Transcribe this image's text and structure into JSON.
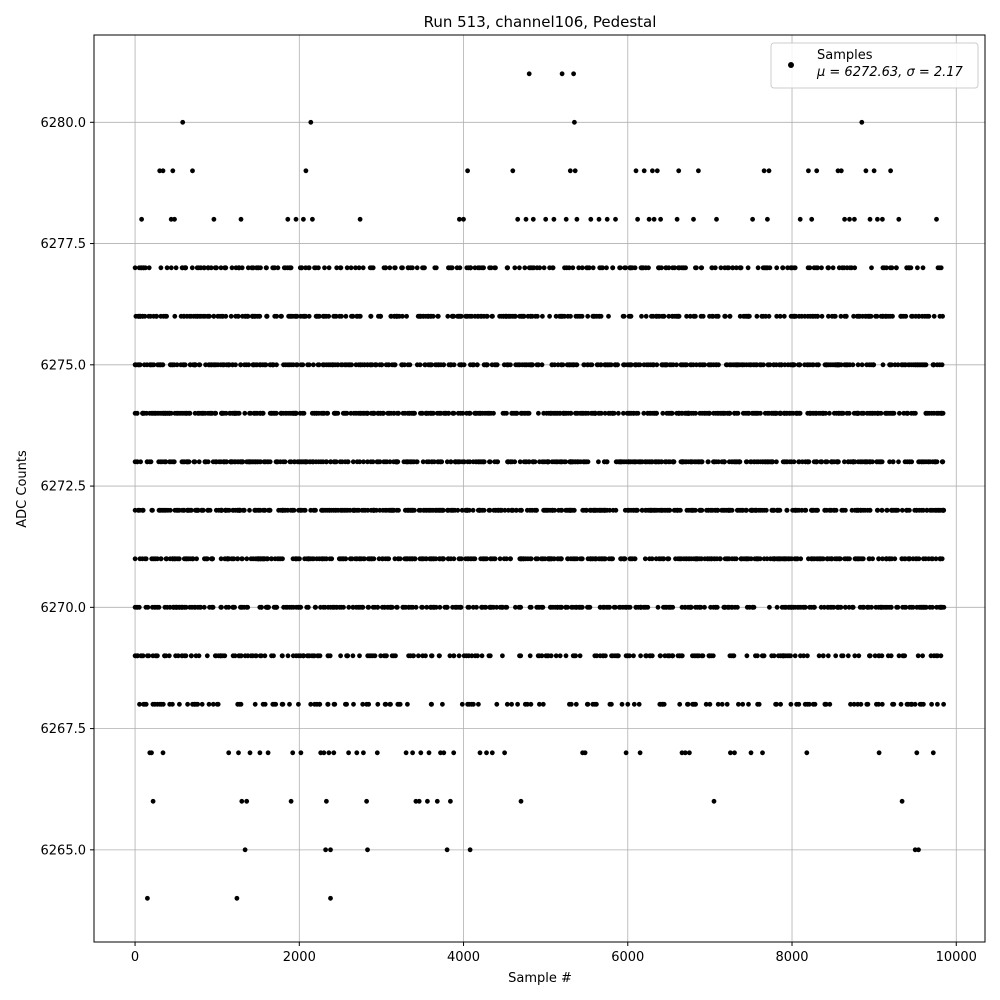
{
  "chart_data": {
    "type": "scatter",
    "title": "Run 513, channel106, Pedestal",
    "xlabel": "Sample #",
    "ylabel": "ADC Counts",
    "xlim": [
      -500,
      10350
    ],
    "ylim": [
      6263.1,
      6281.8
    ],
    "xticks": [
      0,
      2000,
      4000,
      6000,
      8000,
      10000
    ],
    "yticks": [
      6265.0,
      6267.5,
      6270.0,
      6272.5,
      6275.0,
      6277.5,
      6280.0
    ],
    "ytick_labels": [
      "6265.0",
      "6267.5",
      "6270.0",
      "6272.5",
      "6275.0",
      "6277.5",
      "6280.0"
    ],
    "grid": true,
    "legend": {
      "placement": "upper right",
      "entry": "Samples",
      "stats": "μ = 6272.63, σ = 2.17"
    },
    "marker_color": "#000000",
    "series": [
      {
        "name": "Samples",
        "points": [
          [
            0,
            6272
          ],
          [
            0,
            6273
          ],
          [
            0,
            6274
          ],
          [
            0,
            6275
          ],
          [
            0,
            6271
          ],
          [
            0,
            6270
          ],
          [
            0,
            6269
          ],
          [
            50,
            6277
          ],
          [
            60,
            6276
          ],
          [
            80,
            6278
          ],
          [
            120,
            6268
          ],
          [
            150,
            6264
          ],
          [
            150,
            6269
          ],
          [
            180,
            6267
          ],
          [
            200,
            6267
          ],
          [
            220,
            6266
          ],
          [
            300,
            6279
          ],
          [
            340,
            6267
          ],
          [
            340,
            6279
          ],
          [
            360,
            6269
          ],
          [
            440,
            6278
          ],
          [
            460,
            6279
          ],
          [
            480,
            6278
          ],
          [
            500,
            6277
          ],
          [
            540,
            6268
          ],
          [
            580,
            6280
          ],
          [
            640,
            6268
          ],
          [
            700,
            6279
          ],
          [
            720,
            6268
          ],
          [
            800,
            6277
          ],
          [
            880,
            6269
          ],
          [
            900,
            6268
          ],
          [
            960,
            6278
          ],
          [
            1000,
            6268
          ],
          [
            1100,
            6277
          ],
          [
            1140,
            6267
          ],
          [
            1180,
            6277
          ],
          [
            1240,
            6264
          ],
          [
            1260,
            6267
          ],
          [
            1290,
            6278
          ],
          [
            1300,
            6266
          ],
          [
            1340,
            6265
          ],
          [
            1360,
            6266
          ],
          [
            1400,
            6267
          ],
          [
            1450,
            6276
          ],
          [
            1500,
            6277
          ],
          [
            1520,
            6267
          ],
          [
            1600,
            6277
          ],
          [
            1620,
            6267
          ],
          [
            1700,
            6276
          ],
          [
            1740,
            6277
          ],
          [
            1800,
            6268
          ],
          [
            1860,
            6278
          ],
          [
            1900,
            6266
          ],
          [
            1920,
            6267
          ],
          [
            1960,
            6278
          ],
          [
            2020,
            6267
          ],
          [
            2050,
            6278
          ],
          [
            2080,
            6279
          ],
          [
            2120,
            6276
          ],
          [
            2140,
            6280
          ],
          [
            2160,
            6278
          ],
          [
            2200,
            6277
          ],
          [
            2260,
            6267
          ],
          [
            2300,
            6267
          ],
          [
            2320,
            6265
          ],
          [
            2330,
            6266
          ],
          [
            2360,
            6267
          ],
          [
            2380,
            6265
          ],
          [
            2380,
            6264
          ],
          [
            2420,
            6267
          ],
          [
            2500,
            6277
          ],
          [
            2600,
            6267
          ],
          [
            2650,
            6276
          ],
          [
            2700,
            6267
          ],
          [
            2740,
            6278
          ],
          [
            2780,
            6267
          ],
          [
            2820,
            6266
          ],
          [
            2830,
            6265
          ],
          [
            2900,
            6277
          ],
          [
            2950,
            6267
          ],
          [
            3050,
            6277
          ],
          [
            3120,
            6276
          ],
          [
            3200,
            6268
          ],
          [
            3300,
            6267
          ],
          [
            3380,
            6267
          ],
          [
            3420,
            6266
          ],
          [
            3460,
            6266
          ],
          [
            3480,
            6267
          ],
          [
            3500,
            6277
          ],
          [
            3560,
            6266
          ],
          [
            3580,
            6267
          ],
          [
            3650,
            6277
          ],
          [
            3680,
            6266
          ],
          [
            3720,
            6267
          ],
          [
            3760,
            6267
          ],
          [
            3800,
            6265
          ],
          [
            3840,
            6266
          ],
          [
            3880,
            6267
          ],
          [
            3950,
            6278
          ],
          [
            4000,
            6278
          ],
          [
            4050,
            6279
          ],
          [
            4080,
            6265
          ],
          [
            4100,
            6276
          ],
          [
            4200,
            6267
          ],
          [
            4280,
            6267
          ],
          [
            4350,
            6267
          ],
          [
            4500,
            6267
          ],
          [
            4600,
            6279
          ],
          [
            4660,
            6278
          ],
          [
            4700,
            6266
          ],
          [
            4760,
            6278
          ],
          [
            4800,
            6281
          ],
          [
            4850,
            6278
          ],
          [
            4900,
            6276
          ],
          [
            5000,
            6278
          ],
          [
            5100,
            6278
          ],
          [
            5200,
            6281
          ],
          [
            5250,
            6278
          ],
          [
            5300,
            6279
          ],
          [
            5340,
            6281
          ],
          [
            5350,
            6280
          ],
          [
            5360,
            6279
          ],
          [
            5380,
            6278
          ],
          [
            5420,
            6269
          ],
          [
            5450,
            6267
          ],
          [
            5480,
            6267
          ],
          [
            5500,
            6277
          ],
          [
            5550,
            6278
          ],
          [
            5600,
            6268
          ],
          [
            5650,
            6278
          ],
          [
            5700,
            6269
          ],
          [
            5750,
            6278
          ],
          [
            5800,
            6268
          ],
          [
            5850,
            6278
          ],
          [
            5900,
            6277
          ],
          [
            5980,
            6267
          ],
          [
            6000,
            6268
          ],
          [
            6100,
            6279
          ],
          [
            6120,
            6278
          ],
          [
            6150,
            6267
          ],
          [
            6200,
            6279
          ],
          [
            6260,
            6278
          ],
          [
            6300,
            6279
          ],
          [
            6320,
            6278
          ],
          [
            6360,
            6279
          ],
          [
            6400,
            6278
          ],
          [
            6500,
            6277
          ],
          [
            6600,
            6278
          ],
          [
            6620,
            6279
          ],
          [
            6660,
            6267
          ],
          [
            6700,
            6267
          ],
          [
            6750,
            6267
          ],
          [
            6800,
            6278
          ],
          [
            6860,
            6279
          ],
          [
            6900,
            6277
          ],
          [
            7000,
            6268
          ],
          [
            7050,
            6266
          ],
          [
            7080,
            6278
          ],
          [
            7150,
            6268
          ],
          [
            7250,
            6267
          ],
          [
            7300,
            6267
          ],
          [
            7400,
            6268
          ],
          [
            7500,
            6267
          ],
          [
            7520,
            6278
          ],
          [
            7600,
            6268
          ],
          [
            7640,
            6267
          ],
          [
            7660,
            6279
          ],
          [
            7700,
            6278
          ],
          [
            7720,
            6279
          ],
          [
            7800,
            6268
          ],
          [
            7900,
            6269
          ],
          [
            8000,
            6277
          ],
          [
            8100,
            6278
          ],
          [
            8160,
            6268
          ],
          [
            8180,
            6267
          ],
          [
            8200,
            6279
          ],
          [
            8240,
            6278
          ],
          [
            8300,
            6279
          ],
          [
            8400,
            6268
          ],
          [
            8500,
            6277
          ],
          [
            8560,
            6279
          ],
          [
            8600,
            6279
          ],
          [
            8640,
            6278
          ],
          [
            8700,
            6278
          ],
          [
            8760,
            6278
          ],
          [
            8800,
            6268
          ],
          [
            8850,
            6280
          ],
          [
            8900,
            6279
          ],
          [
            8950,
            6278
          ],
          [
            9000,
            6279
          ],
          [
            9040,
            6278
          ],
          [
            9060,
            6267
          ],
          [
            9100,
            6278
          ],
          [
            9150,
            6277
          ],
          [
            9200,
            6279
          ],
          [
            9240,
            6268
          ],
          [
            9300,
            6278
          ],
          [
            9340,
            6266
          ],
          [
            9400,
            6268
          ],
          [
            9460,
            6268
          ],
          [
            9500,
            6265
          ],
          [
            9520,
            6267
          ],
          [
            9540,
            6265
          ],
          [
            9600,
            6268
          ],
          [
            9700,
            6268
          ],
          [
            9720,
            6267
          ],
          [
            9760,
            6278
          ],
          [
            9800,
            6277
          ],
          [
            9850,
            6270
          ]
        ]
      }
    ],
    "dense_bands": [
      {
        "y": 6277,
        "density": 0.45
      },
      {
        "y": 6276,
        "density": 0.65
      },
      {
        "y": 6275,
        "density": 0.9
      },
      {
        "y": 6274,
        "density": 1.0
      },
      {
        "y": 6273,
        "density": 1.0
      },
      {
        "y": 6272,
        "density": 1.0
      },
      {
        "y": 6271,
        "density": 0.95
      },
      {
        "y": 6270,
        "density": 0.75
      },
      {
        "y": 6269,
        "density": 0.45
      },
      {
        "y": 6268,
        "density": 0.25
      }
    ],
    "x_range_samples": [
      0,
      9850
    ]
  }
}
